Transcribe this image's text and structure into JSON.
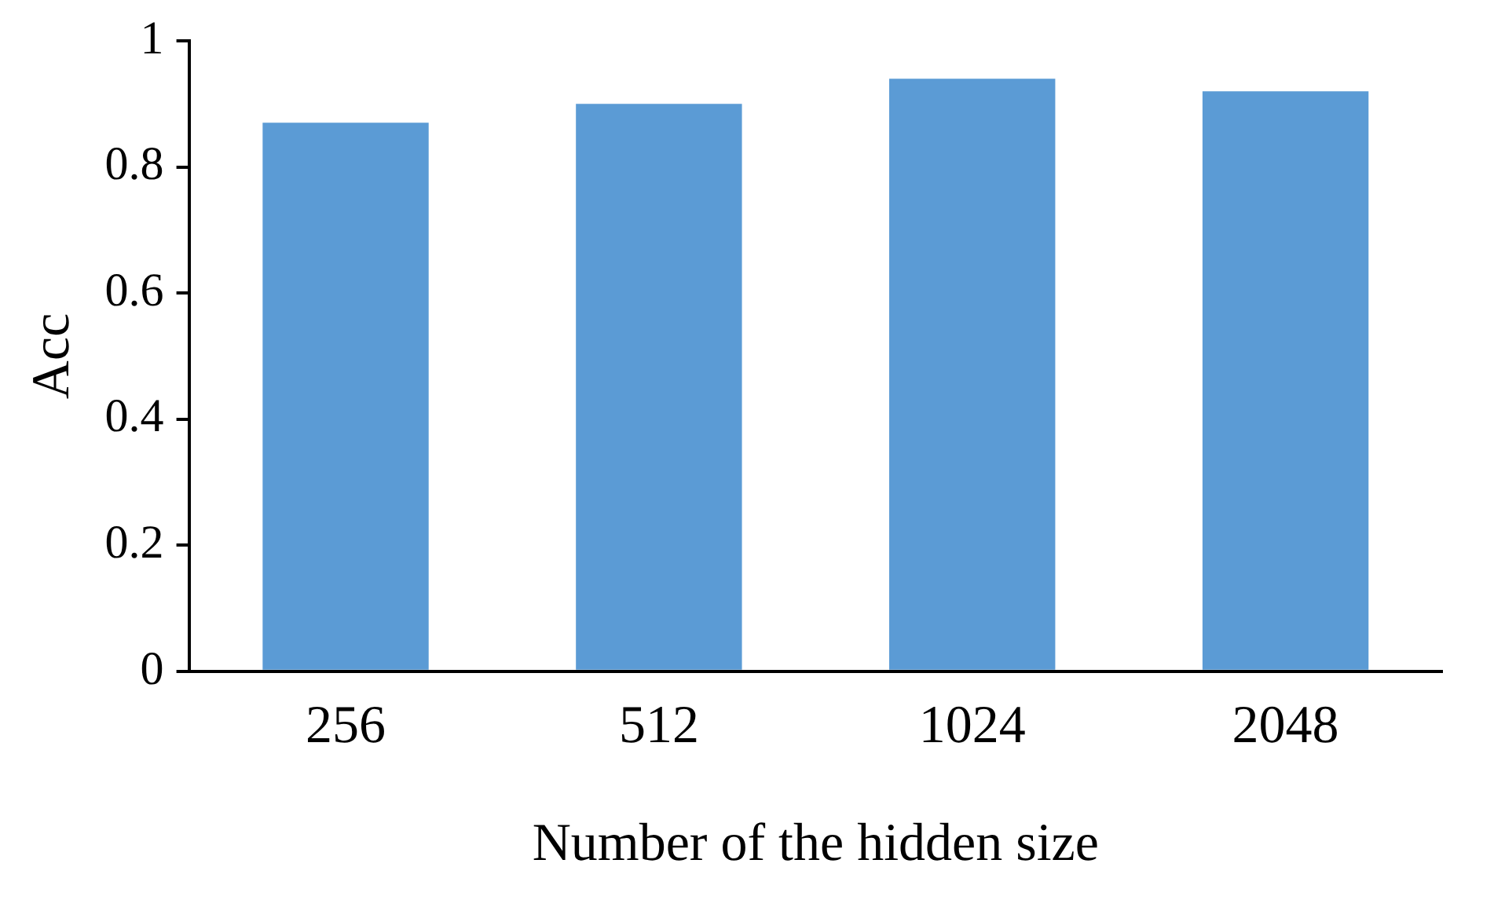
{
  "chart_data": {
    "type": "bar",
    "xlabel": "Number of the hidden size",
    "ylabel": "Acc",
    "categories": [
      "256",
      "512",
      "1024",
      "2048"
    ],
    "values": [
      0.87,
      0.9,
      0.94,
      0.92
    ],
    "color": "#5b9bd5",
    "ylim": [
      0,
      1
    ],
    "yticks": [
      0,
      0.2,
      0.4,
      0.6,
      0.8,
      1
    ],
    "grid": false,
    "legend": false
  }
}
